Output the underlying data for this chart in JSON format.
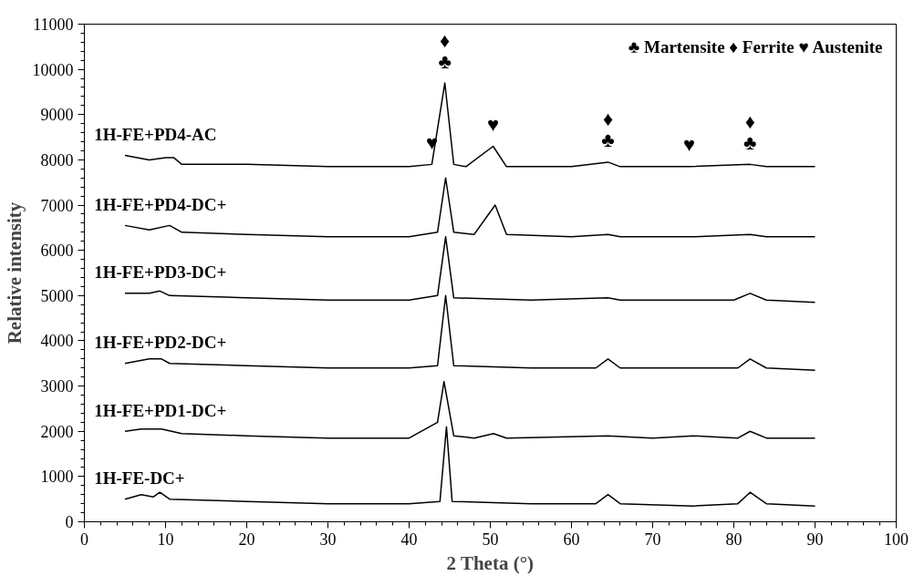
{
  "chart_data": {
    "type": "line",
    "xlabel": "2 Theta (°)",
    "ylabel": "Relative intensity",
    "xlim": [
      0,
      100
    ],
    "ylim": [
      0,
      11000
    ],
    "xticks": [
      0,
      10,
      20,
      30,
      40,
      50,
      60,
      70,
      80,
      90,
      100
    ],
    "yticks": [
      0,
      1000,
      2000,
      3000,
      4000,
      5000,
      6000,
      7000,
      8000,
      9000,
      10000,
      11000
    ],
    "grid": false,
    "line_style": "solid",
    "marker": "none",
    "series": [
      {
        "name": "1H-FE+PD4-AC",
        "color": "#000000",
        "x": [
          5,
          8,
          10,
          11,
          12,
          20,
          30,
          40,
          42.8,
          44.4,
          45.5,
          47,
          50.35,
          52,
          60,
          64.5,
          66,
          70,
          74.5,
          82,
          84,
          90
        ],
        "values": [
          8100,
          8000,
          8050,
          8050,
          7900,
          7900,
          7850,
          7850,
          7900,
          9700,
          7900,
          7850,
          8300,
          7850,
          7850,
          7950,
          7850,
          7850,
          7850,
          7900,
          7850,
          7850
        ]
      },
      {
        "name": "1H-FE+PD4-DC+",
        "color": "#000000",
        "x": [
          5,
          8,
          10.5,
          12,
          20,
          30,
          40,
          43.5,
          44.5,
          45.5,
          48,
          50.6,
          52,
          60,
          64.5,
          66,
          75,
          82,
          84,
          90
        ],
        "values": [
          6550,
          6450,
          6550,
          6400,
          6350,
          6300,
          6300,
          6400,
          7600,
          6400,
          6350,
          7000,
          6350,
          6300,
          6350,
          6300,
          6300,
          6350,
          6300,
          6300
        ]
      },
      {
        "name": "1H-FE+PD3-DC+",
        "color": "#000000",
        "x": [
          5,
          8,
          9.3,
          10.5,
          20,
          30,
          40,
          43.5,
          44.5,
          45.5,
          55,
          64.5,
          66,
          70,
          80,
          82,
          84,
          90
        ],
        "values": [
          5050,
          5050,
          5100,
          5000,
          4950,
          4900,
          4900,
          5000,
          6300,
          4950,
          4900,
          4950,
          4900,
          4900,
          4900,
          5050,
          4900,
          4850
        ]
      },
      {
        "name": "1H-FE+PD2-DC+",
        "color": "#000000",
        "x": [
          5,
          8,
          9.5,
          10.5,
          20,
          30,
          40,
          43.5,
          44.5,
          45.5,
          55,
          63,
          64.5,
          66,
          75,
          80.5,
          82,
          84,
          90
        ],
        "values": [
          3500,
          3600,
          3600,
          3500,
          3450,
          3400,
          3400,
          3450,
          5000,
          3450,
          3400,
          3400,
          3600,
          3400,
          3400,
          3400,
          3600,
          3400,
          3350
        ]
      },
      {
        "name": "1H-FE+PD1-DC+",
        "color": "#000000",
        "x": [
          5,
          7,
          9.5,
          12,
          20,
          30,
          40,
          43.5,
          44.3,
          45.5,
          48,
          50.4,
          52,
          64.5,
          70,
          75,
          80.5,
          82,
          84,
          90
        ],
        "values": [
          2000,
          2050,
          2050,
          1950,
          1900,
          1850,
          1850,
          2200,
          3100,
          1900,
          1850,
          1950,
          1850,
          1900,
          1850,
          1900,
          1850,
          2000,
          1850,
          1850
        ]
      },
      {
        "name": "1H-FE-DC+",
        "color": "#000000",
        "x": [
          5,
          7,
          8.5,
          9.3,
          10.5,
          20,
          30,
          40,
          43.8,
          44.6,
          45.3,
          55,
          63,
          64.5,
          66,
          75,
          80.5,
          82,
          84,
          90
        ],
        "values": [
          500,
          600,
          550,
          650,
          500,
          450,
          400,
          400,
          450,
          2100,
          450,
          400,
          400,
          600,
          400,
          350,
          400,
          650,
          400,
          350
        ]
      }
    ],
    "annotations": [
      {
        "text": "♣",
        "x": 44.4,
        "y": 9700
      },
      {
        "text": "♦",
        "x": 44.4,
        "y": 9700
      },
      {
        "text": "♥",
        "x": 42.8,
        "y": 7900
      },
      {
        "text": "♥",
        "x": 50.35,
        "y": 8300
      },
      {
        "text": "♣",
        "x": 64.5,
        "y": 7950
      },
      {
        "text": "♦",
        "x": 64.5,
        "y": 7950
      },
      {
        "text": "♥",
        "x": 74.5,
        "y": 7850
      },
      {
        "text": "♣",
        "x": 82,
        "y": 7900
      },
      {
        "text": "♦",
        "x": 82,
        "y": 7900
      },
      "♣ Martensite  ♦ Ferrite  ♥ Austenite"
    ]
  }
}
